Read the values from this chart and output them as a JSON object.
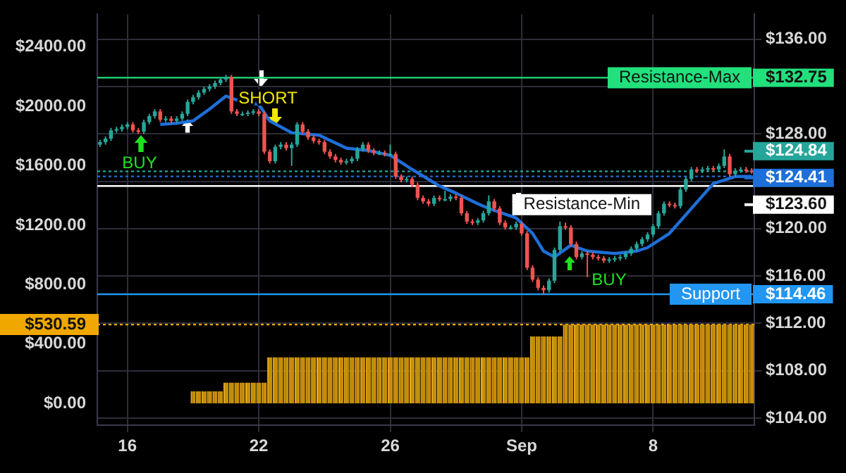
{
  "chart_data": {
    "type": "candlestick",
    "grid": true,
    "categories": [
      null,
      null,
      null,
      null,
      null,
      "16",
      null,
      null,
      null,
      null,
      null,
      null,
      null,
      null,
      null,
      null,
      null,
      null,
      null,
      null,
      null,
      null,
      null,
      null,
      null,
      null,
      null,
      null,
      null,
      "22",
      null,
      null,
      null,
      null,
      null,
      null,
      null,
      null,
      null,
      null,
      null,
      null,
      null,
      null,
      null,
      null,
      null,
      null,
      null,
      null,
      null,
      null,
      null,
      "26",
      null,
      null,
      null,
      null,
      null,
      null,
      null,
      null,
      null,
      null,
      null,
      null,
      null,
      null,
      null,
      null,
      null,
      null,
      null,
      null,
      null,
      null,
      null,
      "Sep",
      null,
      null,
      null,
      null,
      null,
      null,
      null,
      null,
      null,
      null,
      null,
      null,
      null,
      null,
      null,
      null,
      null,
      null,
      null,
      null,
      null,
      null,
      null,
      "8",
      null,
      null,
      null,
      null,
      null,
      null,
      null,
      null,
      null,
      null,
      null,
      null,
      null,
      null,
      null,
      null,
      null,
      null
    ],
    "ylim": [
      -147,
      2620
    ],
    "yticks": [
      {
        "value": 0,
        "label": "$0.00"
      },
      {
        "value": 400,
        "label": "$400.00"
      },
      {
        "value": 800,
        "label": "$800.00"
      },
      {
        "value": 1200,
        "label": "$1200.00"
      },
      {
        "value": 1600,
        "label": "$1600.00"
      },
      {
        "value": 2000,
        "label": "$2000.00"
      },
      {
        "value": 2400,
        "label": "$2400.00"
      }
    ],
    "y2lim": [
      103.4,
      138.1
    ],
    "y2ticks": [
      {
        "value": 104,
        "label": "$104.00"
      },
      {
        "value": 108,
        "label": "$108.00"
      },
      {
        "value": 112,
        "label": "$112.00"
      },
      {
        "value": 116,
        "label": "$116.00"
      },
      {
        "value": 120,
        "label": "$120.00"
      },
      {
        "value": 124,
        "label": null
      },
      {
        "value": 128,
        "label": "$128.00"
      },
      {
        "value": 132,
        "label": null
      },
      {
        "value": 136,
        "label": "$136.00"
      }
    ],
    "series": [
      {
        "type": "bar",
        "axis": "y",
        "color": "#c88e04",
        "values": [
          0,
          0,
          0,
          0,
          0,
          0,
          0,
          0,
          0,
          0,
          0,
          0,
          0,
          0,
          0,
          0,
          0,
          80,
          80,
          80,
          80,
          80,
          80,
          140,
          140,
          140,
          140,
          140,
          140,
          140,
          140,
          310,
          310,
          310,
          310,
          310,
          310,
          310,
          310,
          310,
          310,
          310,
          310,
          310,
          310,
          310,
          310,
          310,
          310,
          310,
          310,
          310,
          310,
          310,
          310,
          310,
          310,
          310,
          310,
          310,
          310,
          310,
          310,
          310,
          310,
          310,
          310,
          310,
          310,
          310,
          310,
          310,
          310,
          310,
          310,
          310,
          310,
          310,
          310,
          450,
          450,
          450,
          450,
          450,
          450,
          530.59,
          530.59,
          530.59,
          530.59,
          530.59,
          530.59,
          530.59,
          530.59,
          530.59,
          530.59,
          530.59,
          530.59,
          530.59,
          530.59,
          530.59,
          530.59,
          530.59,
          530.59,
          530.59,
          530.59,
          530.59,
          530.59,
          530.59,
          530.59,
          530.59,
          530.59,
          530.59,
          530.59,
          530.59,
          530.59,
          530.59,
          530.59,
          530.59,
          530.59,
          530.59
        ]
      },
      {
        "axis": "y2",
        "ohlc": [
          [
            127.1,
            127.5,
            126.9,
            127.3
          ],
          [
            127.3,
            127.8,
            127.1,
            127.6
          ],
          [
            127.6,
            128.5,
            127.4,
            128.3
          ],
          [
            128.3,
            128.6,
            128.1,
            128.4
          ],
          [
            128.4,
            128.8,
            128.2,
            128.6
          ],
          [
            128.6,
            129.0,
            128.4,
            128.8
          ],
          [
            128.8,
            129.0,
            128.1,
            128.3
          ],
          [
            128.3,
            128.5,
            128.0,
            128.2
          ],
          [
            128.2,
            129.2,
            128.0,
            129.0
          ],
          [
            129.0,
            129.7,
            128.8,
            129.5
          ],
          [
            129.5,
            130.1,
            129.3,
            129.9
          ],
          [
            129.9,
            130.1,
            129.0,
            129.2
          ],
          [
            129.2,
            129.5,
            129.0,
            129.3
          ],
          [
            129.3,
            129.5,
            128.9,
            129.1
          ],
          [
            129.1,
            129.5,
            128.9,
            129.3
          ],
          [
            129.3,
            129.9,
            129.1,
            129.7
          ],
          [
            129.7,
            130.9,
            129.5,
            130.7
          ],
          [
            130.7,
            131.3,
            130.5,
            131.1
          ],
          [
            131.1,
            131.7,
            130.9,
            131.5
          ],
          [
            131.5,
            132.0,
            131.3,
            131.8
          ],
          [
            131.8,
            132.2,
            131.6,
            132.0
          ],
          [
            132.0,
            132.5,
            131.8,
            132.3
          ],
          [
            132.3,
            132.8,
            132.1,
            132.6
          ],
          [
            132.6,
            133.0,
            132.4,
            132.8
          ],
          [
            132.8,
            133.0,
            129.7,
            129.9
          ],
          [
            129.9,
            130.1,
            129.5,
            129.7
          ],
          [
            129.7,
            129.9,
            129.5,
            129.7
          ],
          [
            129.7,
            130.0,
            129.5,
            129.8
          ],
          [
            129.8,
            130.1,
            129.6,
            129.9
          ],
          [
            129.9,
            130.1,
            129.5,
            129.7
          ],
          [
            129.7,
            129.9,
            126.3,
            126.5
          ],
          [
            126.5,
            126.7,
            125.5,
            125.7
          ],
          [
            125.7,
            127.1,
            125.5,
            126.9
          ],
          [
            126.9,
            127.3,
            126.7,
            127.1
          ],
          [
            127.1,
            127.3,
            126.6,
            126.8
          ],
          [
            126.8,
            127.3,
            125.3,
            127.1
          ],
          [
            127.1,
            129.0,
            126.9,
            128.8
          ],
          [
            128.8,
            129.0,
            128.0,
            128.2
          ],
          [
            128.2,
            128.4,
            127.5,
            127.7
          ],
          [
            127.7,
            127.9,
            127.2,
            127.4
          ],
          [
            127.4,
            127.6,
            127.1,
            127.3
          ],
          [
            127.3,
            127.5,
            126.3,
            126.5
          ],
          [
            126.5,
            126.7,
            125.9,
            126.1
          ],
          [
            126.1,
            126.3,
            125.6,
            125.8
          ],
          [
            125.8,
            126.0,
            125.4,
            125.6
          ],
          [
            125.6,
            125.9,
            125.4,
            125.7
          ],
          [
            125.7,
            126.1,
            125.5,
            125.9
          ],
          [
            125.9,
            126.9,
            125.7,
            126.7
          ],
          [
            126.7,
            127.3,
            126.5,
            127.1
          ],
          [
            127.1,
            127.3,
            126.4,
            126.6
          ],
          [
            126.6,
            126.8,
            126.2,
            126.4
          ],
          [
            126.4,
            126.6,
            126.2,
            126.4
          ],
          [
            126.4,
            126.6,
            126.1,
            126.3
          ],
          [
            126.3,
            127.1,
            126.1,
            126.3
          ],
          [
            126.3,
            126.5,
            124.2,
            124.4
          ],
          [
            124.4,
            124.6,
            123.9,
            124.1
          ],
          [
            124.1,
            124.4,
            123.9,
            124.2
          ],
          [
            124.2,
            124.4,
            123.5,
            123.7
          ],
          [
            123.7,
            123.9,
            122.4,
            122.6
          ],
          [
            122.6,
            122.8,
            122.1,
            122.3
          ],
          [
            122.3,
            122.5,
            121.9,
            122.1
          ],
          [
            122.1,
            122.8,
            121.9,
            122.6
          ],
          [
            122.6,
            122.8,
            122.3,
            122.5
          ],
          [
            122.5,
            123.2,
            122.3,
            122.5
          ],
          [
            122.5,
            122.9,
            122.3,
            122.7
          ],
          [
            122.7,
            122.9,
            122.4,
            122.6
          ],
          [
            122.6,
            122.8,
            121.1,
            121.3
          ],
          [
            121.3,
            121.5,
            120.4,
            120.6
          ],
          [
            120.6,
            120.8,
            120.3,
            120.5
          ],
          [
            120.5,
            120.9,
            120.3,
            120.7
          ],
          [
            120.7,
            121.5,
            120.5,
            121.3
          ],
          [
            121.3,
            122.8,
            121.1,
            122.3
          ],
          [
            122.3,
            122.5,
            121.5,
            121.7
          ],
          [
            121.7,
            121.9,
            120.3,
            120.5
          ],
          [
            120.5,
            120.7,
            119.9,
            120.1
          ],
          [
            120.1,
            120.3,
            119.9,
            120.1
          ],
          [
            120.1,
            120.6,
            119.9,
            120.4
          ],
          [
            120.4,
            120.6,
            119.4,
            119.6
          ],
          [
            119.6,
            119.8,
            116.5,
            116.7
          ],
          [
            116.7,
            116.9,
            115.5,
            115.7
          ],
          [
            115.7,
            115.9,
            114.8,
            115.0
          ],
          [
            115.0,
            115.2,
            114.4,
            114.8
          ],
          [
            114.8,
            115.8,
            114.6,
            115.6
          ],
          [
            115.6,
            118.4,
            115.4,
            118.2
          ],
          [
            118.2,
            120.6,
            118.0,
            120.2
          ],
          [
            120.2,
            120.5,
            119.9,
            120.1
          ],
          [
            120.1,
            120.3,
            118.5,
            118.7
          ],
          [
            118.7,
            118.9,
            117.4,
            117.6
          ],
          [
            117.6,
            118.1,
            117.4,
            117.9
          ],
          [
            117.9,
            118.1,
            115.9,
            117.8
          ],
          [
            117.8,
            118.0,
            117.4,
            117.6
          ],
          [
            117.6,
            117.8,
            117.3,
            117.5
          ],
          [
            117.5,
            117.7,
            117.1,
            117.3
          ],
          [
            117.3,
            117.6,
            117.1,
            117.4
          ],
          [
            117.4,
            117.7,
            117.2,
            117.5
          ],
          [
            117.5,
            117.8,
            117.3,
            117.6
          ],
          [
            117.6,
            118.1,
            117.4,
            117.9
          ],
          [
            117.9,
            118.5,
            117.7,
            118.3
          ],
          [
            118.3,
            118.9,
            118.1,
            118.7
          ],
          [
            118.7,
            119.3,
            118.5,
            119.1
          ],
          [
            119.1,
            119.7,
            118.9,
            119.5
          ],
          [
            119.5,
            120.4,
            119.3,
            120.2
          ],
          [
            120.2,
            121.5,
            120.0,
            121.3
          ],
          [
            121.3,
            122.3,
            121.1,
            122.1
          ],
          [
            122.1,
            122.3,
            121.8,
            122.0
          ],
          [
            122.0,
            122.2,
            121.7,
            121.9
          ],
          [
            121.9,
            123.5,
            121.7,
            123.3
          ],
          [
            123.3,
            124.4,
            123.1,
            124.2
          ],
          [
            124.2,
            125.2,
            124.0,
            125.0
          ],
          [
            125.0,
            125.2,
            124.7,
            124.9
          ],
          [
            124.9,
            125.2,
            124.7,
            125.0
          ],
          [
            125.0,
            125.3,
            124.8,
            125.1
          ],
          [
            125.1,
            125.3,
            124.8,
            125.0
          ],
          [
            125.0,
            125.5,
            124.8,
            125.3
          ],
          [
            125.3,
            126.7,
            125.1,
            126.1
          ],
          [
            126.1,
            126.3,
            124.4,
            124.6
          ],
          [
            124.6,
            125.1,
            124.4,
            124.9
          ],
          [
            124.9,
            125.2,
            124.7,
            125.0
          ],
          [
            125.0,
            125.2,
            124.7,
            124.9
          ],
          [
            124.9,
            125.1,
            124.64,
            124.84
          ]
        ],
        "colors": [
          "#26a69a",
          "#26a69a",
          "#26a69a",
          "#26a69a",
          "#26a69a",
          "#26a69a",
          "#ef5350",
          "#ef5350",
          "#26a69a",
          "#26a69a",
          "#26a69a",
          "#ef5350",
          "#26a69a",
          "#ef5350",
          "#26a69a",
          "#26a69a",
          "#26a69a",
          "#26a69a",
          "#26a69a",
          "#26a69a",
          "#26a69a",
          "#26a69a",
          "#26a69a",
          "#26a69a",
          "#ef5350",
          "#ef5350",
          "#26a69a",
          "#26a69a",
          "#26a69a",
          "#ef5350",
          "#ef5350",
          "#ef5350",
          "#26a69a",
          "#26a69a",
          "#ef5350",
          "#26a69a",
          "#26a69a",
          "#ef5350",
          "#ef5350",
          "#ef5350",
          "#ef5350",
          "#ef5350",
          "#ef5350",
          "#ef5350",
          "#ef5350",
          "#26a69a",
          "#26a69a",
          "#26a69a",
          "#26a69a",
          "#ef5350",
          "#ef5350",
          "#26a69a",
          "#ef5350",
          "#26a69a",
          "#ef5350",
          "#ef5350",
          "#26a69a",
          "#ef5350",
          "#ef5350",
          "#ef5350",
          "#ef5350",
          "#26a69a",
          "#ef5350",
          "#26a69a",
          "#26a69a",
          "#ef5350",
          "#ef5350",
          "#ef5350",
          "#ef5350",
          "#26a69a",
          "#26a69a",
          "#26a69a",
          "#ef5350",
          "#ef5350",
          "#ef5350",
          "#26a69a",
          "#26a69a",
          "#ef5350",
          "#ef5350",
          "#ef5350",
          "#ef5350",
          "#ef5350",
          "#26a69a",
          "#26a69a",
          "#26a69a",
          "#ef5350",
          "#ef5350",
          "#ef5350",
          "#26a69a",
          "#ef5350",
          "#ef5350",
          "#ef5350",
          "#ef5350",
          "#26a69a",
          "#26a69a",
          "#26a69a",
          "#26a69a",
          "#26a69a",
          "#26a69a",
          "#26a69a",
          "#26a69a",
          "#26a69a",
          "#26a69a",
          "#26a69a",
          "#ef5350",
          "#ef5350",
          "#26a69a",
          "#26a69a",
          "#26a69a",
          "#ef5350",
          "#26a69a",
          "#26a69a",
          "#ef5350",
          "#26a69a",
          "#26a69a",
          "#ef5350",
          "#26a69a",
          "#26a69a",
          "#ef5350",
          "#ef5350"
        ]
      },
      {
        "type": "line",
        "axis": "y2",
        "color": "#1e6fd9",
        "values": [
          null,
          null,
          null,
          null,
          null,
          null,
          null,
          null,
          null,
          null,
          null,
          128.8,
          null,
          null,
          128.9,
          null,
          null,
          129.1,
          null,
          null,
          130.1,
          null,
          null,
          131.2,
          null,
          null,
          130.7,
          null,
          null,
          130.5,
          null,
          129.1,
          null,
          null,
          null,
          128.1,
          null,
          null,
          null,
          null,
          127.9,
          null,
          null,
          null,
          null,
          126.8,
          null,
          null,
          null,
          126.6,
          null,
          null,
          null,
          126.2,
          null,
          null,
          null,
          125.0,
          null,
          null,
          null,
          null,
          123.6,
          null,
          null,
          123.0,
          null,
          null,
          null,
          122.1,
          null,
          121.7,
          null,
          null,
          null,
          null,
          120.9,
          null,
          null,
          119.6,
          null,
          118.1,
          null,
          117.6,
          null,
          null,
          118.6,
          null,
          null,
          118.1,
          null,
          null,
          null,
          null,
          117.9,
          null,
          null,
          null,
          118.1,
          null,
          118.4,
          null,
          null,
          null,
          119.6,
          null,
          null,
          null,
          null,
          null,
          null,
          null,
          123.8,
          null,
          null,
          null,
          124.4,
          null,
          null,
          124.41
        ]
      }
    ],
    "ref_lines": [
      {
        "axis": "y2",
        "value": 132.75,
        "label": "$132.75",
        "color": "#22e07c"
      },
      {
        "axis": "y2",
        "value": 124.84,
        "label": "$124.84",
        "color": "#26a69a",
        "line_style": "dotted"
      },
      {
        "axis": "y2",
        "value": 124.41,
        "label": "$124.41",
        "color": "#1e6fd9",
        "line_style": "dotted"
      },
      {
        "axis": "y2",
        "value": 123.6,
        "label": "$123.60",
        "color": "#ffffff"
      },
      {
        "axis": "y2",
        "value": 114.46,
        "label": "$114.46",
        "color": "#2196f3"
      },
      {
        "axis": "y",
        "value": 530.59,
        "label": "$530.59",
        "color": "#f0a800",
        "line_style": "dotted"
      }
    ],
    "annotations": [
      "BUY",
      "SHORT",
      "BUY",
      "Resistance-Max",
      "Resistance-Min",
      "Support"
    ]
  }
}
